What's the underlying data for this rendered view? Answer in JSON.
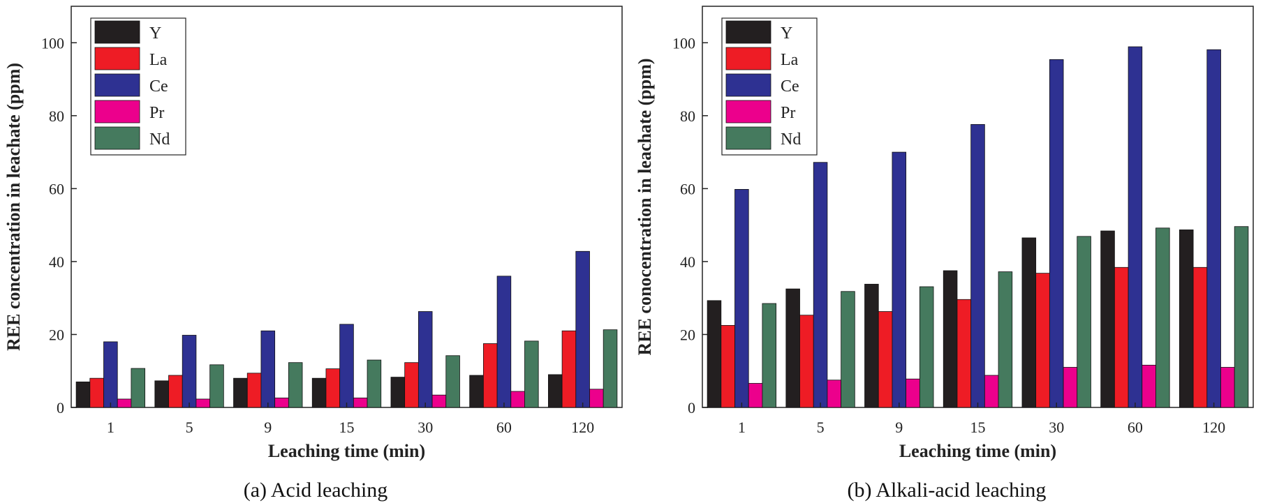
{
  "series_colors": {
    "Y": "#231f20",
    "La": "#ee1c25",
    "Ce": "#2e3192",
    "Pr": "#ec008c",
    "Nd": "#457a5e"
  },
  "chart_data": [
    {
      "type": "bar",
      "caption": "(a) Acid leaching",
      "xlabel": "Leaching time (min)",
      "ylabel": "REE concentration in leachate (ppm)",
      "ylim": [
        0,
        110
      ],
      "yticks": [
        0,
        20,
        40,
        60,
        80,
        100
      ],
      "grid": false,
      "legend": "top-left",
      "categories": [
        "1",
        "5",
        "9",
        "15",
        "30",
        "60",
        "120"
      ],
      "series": [
        {
          "name": "Y",
          "values": [
            7.0,
            7.3,
            8.0,
            8.0,
            8.3,
            8.8,
            9.0
          ]
        },
        {
          "name": "La",
          "values": [
            8.0,
            8.8,
            9.4,
            10.6,
            12.3,
            17.5,
            21.0
          ]
        },
        {
          "name": "Ce",
          "values": [
            18.0,
            19.8,
            21.0,
            22.8,
            26.3,
            36.0,
            42.8
          ]
        },
        {
          "name": "Pr",
          "values": [
            2.3,
            2.3,
            2.6,
            2.6,
            3.4,
            4.4,
            5.0
          ]
        },
        {
          "name": "Nd",
          "values": [
            10.7,
            11.7,
            12.3,
            13.0,
            14.2,
            18.2,
            21.3
          ]
        }
      ]
    },
    {
      "type": "bar",
      "caption": "(b) Alkali-acid leaching",
      "xlabel": "Leaching time (min)",
      "ylabel": "REE conocentration in leachate (ppm)",
      "ylim": [
        0,
        110
      ],
      "yticks": [
        0,
        20,
        40,
        60,
        80,
        100
      ],
      "grid": false,
      "legend": "top-left",
      "categories": [
        "1",
        "5",
        "9",
        "15",
        "30",
        "60",
        "120"
      ],
      "series": [
        {
          "name": "Y",
          "values": [
            29.3,
            32.5,
            33.8,
            37.5,
            46.5,
            48.4,
            48.7
          ]
        },
        {
          "name": "La",
          "values": [
            22.5,
            25.3,
            26.3,
            29.6,
            36.8,
            38.4,
            38.4
          ]
        },
        {
          "name": "Ce",
          "values": [
            59.8,
            67.2,
            70.0,
            77.6,
            95.4,
            98.9,
            98.1
          ]
        },
        {
          "name": "Pr",
          "values": [
            6.6,
            7.5,
            7.8,
            8.8,
            11.0,
            11.6,
            11.0
          ]
        },
        {
          "name": "Nd",
          "values": [
            28.5,
            31.8,
            33.1,
            37.2,
            46.9,
            49.2,
            49.6
          ]
        }
      ]
    }
  ]
}
